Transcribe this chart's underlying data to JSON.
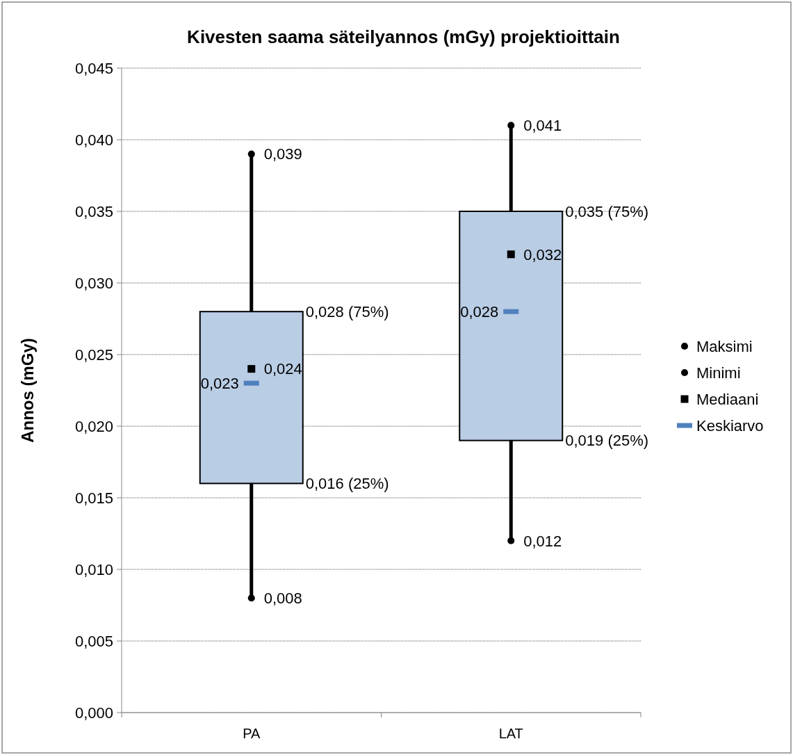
{
  "chart_data": {
    "type": "box",
    "title": "Kivesten saama säteilyannos (mGy) projektioittain",
    "ylabel": "Annos (mGy)",
    "categories": [
      "PA",
      "LAT"
    ],
    "ylim": [
      0,
      0.045
    ],
    "yticks": [
      {
        "value": 0,
        "label": "0,000"
      },
      {
        "value": 0.005,
        "label": "0,005"
      },
      {
        "value": 0.01,
        "label": "0,010"
      },
      {
        "value": 0.015,
        "label": "0,015"
      },
      {
        "value": 0.02,
        "label": "0,020"
      },
      {
        "value": 0.025,
        "label": "0,025"
      },
      {
        "value": 0.03,
        "label": "0,030"
      },
      {
        "value": 0.035,
        "label": "0,035"
      },
      {
        "value": 0.04,
        "label": "0,040"
      },
      {
        "value": 0.045,
        "label": "0,045"
      }
    ],
    "grid": "y",
    "legend": "right",
    "series": [
      {
        "color": "#b9cde5",
        "boxes": [
          {
            "low": 0.008,
            "q1": 0.016,
            "median": 0.024,
            "q3": 0.028,
            "high": 0.039,
            "mean": 0.023
          },
          {
            "low": 0.012,
            "q1": 0.019,
            "median": 0.032,
            "q3": 0.035,
            "high": 0.041,
            "mean": 0.028
          }
        ]
      },
      {
        "type": "scatter",
        "name": "Maksimi",
        "color": "#000000",
        "marker": "circle",
        "x": [
          "PA",
          "LAT"
        ],
        "values": [
          0.039,
          0.041
        ],
        "value_labels": [
          "0,039",
          "0,041"
        ]
      },
      {
        "type": "scatter",
        "name": "Minimi",
        "color": "#000000",
        "marker": "circle",
        "x": [
          "PA",
          "LAT"
        ],
        "values": [
          0.008,
          0.012
        ],
        "value_labels": [
          "0,008",
          "0,012"
        ]
      },
      {
        "type": "scatter",
        "name": "Mediaani",
        "color": "#000000",
        "marker": "square",
        "values": [
          null,
          null
        ]
      },
      {
        "type": "scatter",
        "name": "Keskiarvo",
        "color": "#4f81bd",
        "values": [
          null,
          null
        ]
      }
    ],
    "annotations": [
      "0,028 (75%)",
      "0,016 (25%)",
      "0,035 (75%)",
      "0,019 (25%)",
      "0,023",
      "0,028",
      {
        "text": "0,024",
        "x": "PA",
        "y": 0.024
      },
      {
        "text": "0,032",
        "x": "LAT",
        "y": 0.032
      }
    ]
  }
}
